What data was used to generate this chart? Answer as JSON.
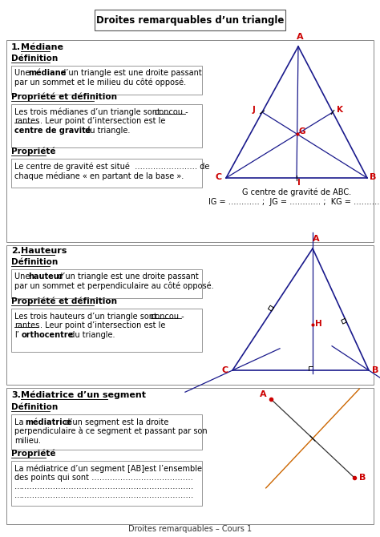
{
  "title": "Droites remarquables d’un triangle",
  "footer": "Droites remarquables – Cours 1",
  "bg_color": "#ffffff",
  "border_color": "#aaaaaa",
  "section1": {
    "number": "1.",
    "heading": "Médiane",
    "def_title": "Définition",
    "prop1_title": "Propriété et définition",
    "prop2_title": "Propriété",
    "caption1": "G centre de gravité de ABC.",
    "caption2": "IG = ………… ;  JG = ………… ;  KG = …………"
  },
  "section2": {
    "number": "2.",
    "heading": "Hauteurs",
    "def_title": "Définition",
    "prop_title": "Propriété et définition"
  },
  "section3": {
    "number": "3.",
    "heading": "Médiatrice d’un segment",
    "def_title": "Définition",
    "prop_title": "Propriété"
  },
  "tri_color": "#1a1a8c",
  "red": "#cc0000"
}
